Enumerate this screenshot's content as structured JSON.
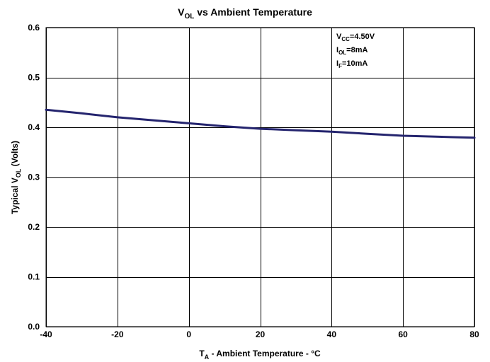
{
  "chart_data": {
    "type": "line",
    "title": {
      "base": "V",
      "sub": "OL",
      "rest": " vs Ambient Temperature"
    },
    "xlabel": {
      "base": "T",
      "sub": "A",
      "rest": " - Ambient Temperature - °C"
    },
    "ylabel": {
      "pre": "Typical V",
      "sub": "OL",
      "rest": " (Volts)"
    },
    "xlim": [
      -40,
      80
    ],
    "ylim": [
      0,
      0.6
    ],
    "x_ticks": [
      -40,
      -20,
      0,
      20,
      40,
      60,
      80
    ],
    "x_tick_labels": [
      "-40",
      "-20",
      "0",
      "20",
      "40",
      "60",
      "80"
    ],
    "y_ticks": [
      0,
      0.1,
      0.2,
      0.3,
      0.4,
      0.5,
      0.6
    ],
    "y_tick_labels": [
      "0.0",
      "0.1",
      "0.2",
      "0.3",
      "0.4",
      "0.5",
      "0.6"
    ],
    "grid": true,
    "series": [
      {
        "color": "#24246e",
        "x": [
          -40,
          -30,
          -20,
          -10,
          0,
          10,
          20,
          30,
          40,
          50,
          60,
          70,
          80
        ],
        "y": [
          0.435,
          0.428,
          0.42,
          0.414,
          0.408,
          0.402,
          0.397,
          0.394,
          0.391,
          0.387,
          0.383,
          0.381,
          0.379
        ]
      }
    ],
    "annotations": [
      {
        "base": "V",
        "sub": "CC",
        "rest": "=4.50V"
      },
      {
        "base": "I",
        "sub": "OL",
        "rest": "=8mA"
      },
      {
        "base": "I",
        "sub": "F",
        "rest": "=10mA"
      }
    ]
  }
}
